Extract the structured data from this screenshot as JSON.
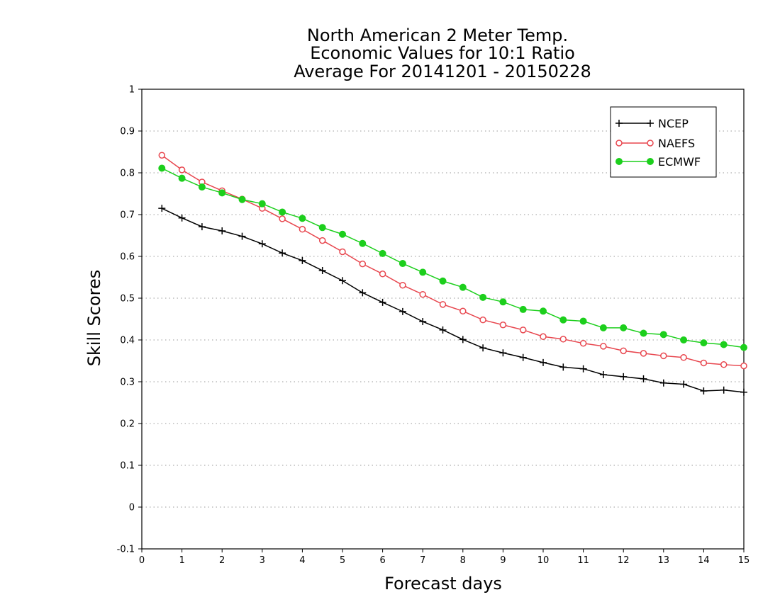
{
  "chart_data": {
    "type": "line",
    "title": [
      "North American 2 Meter Temp.",
      "Economic Values for 10:1 Ratio",
      "Average For 20141201 - 20150228"
    ],
    "xlabel": "Forecast days",
    "ylabel": "Skill Scores",
    "xlim": [
      0,
      15
    ],
    "ylim": [
      -0.1,
      1
    ],
    "xticks": [
      0,
      1,
      2,
      3,
      4,
      5,
      6,
      7,
      8,
      9,
      10,
      11,
      12,
      13,
      14,
      15
    ],
    "xtick_labels": [
      "0",
      "1",
      "2",
      "3",
      "4",
      "5",
      "6",
      "7",
      "8",
      "9",
      "10",
      "11",
      "12",
      "13",
      "14",
      "15"
    ],
    "yticks": [
      -0.1,
      0,
      0.1,
      0.2,
      0.3,
      0.4,
      0.5,
      0.6,
      0.7,
      0.8,
      0.9,
      1
    ],
    "ytick_labels": [
      "-0.1",
      "0",
      "0.1",
      "0.2",
      "0.3",
      "0.4",
      "0.5",
      "0.6",
      "0.7",
      "0.8",
      "0.9",
      "1"
    ],
    "grid": "horizontal dotted",
    "legend_position": "top-right",
    "x": [
      0.5,
      1,
      1.5,
      2,
      2.5,
      3,
      3.5,
      4,
      4.5,
      5,
      5.5,
      6,
      6.5,
      7,
      7.5,
      8,
      8.5,
      9,
      9.5,
      10,
      10.5,
      11,
      11.5,
      12,
      12.5,
      13,
      13.5,
      14,
      14.5,
      15
    ],
    "series": [
      {
        "name": "NCEP",
        "color": "#000000",
        "marker": "plus",
        "values": [
          0.715,
          0.692,
          0.671,
          0.661,
          0.648,
          0.63,
          0.608,
          0.59,
          0.566,
          0.542,
          0.513,
          0.49,
          0.468,
          0.444,
          0.424,
          0.401,
          0.381,
          0.369,
          0.358,
          0.346,
          0.335,
          0.331,
          0.317,
          0.312,
          0.307,
          0.297,
          0.294,
          0.278,
          0.28,
          0.275
        ]
      },
      {
        "name": "NAEFS",
        "color": "#e8474f",
        "marker": "open-circle",
        "values": [
          0.842,
          0.807,
          0.778,
          0.757,
          0.737,
          0.715,
          0.69,
          0.665,
          0.638,
          0.611,
          0.582,
          0.558,
          0.531,
          0.509,
          0.485,
          0.469,
          0.448,
          0.436,
          0.424,
          0.408,
          0.402,
          0.392,
          0.385,
          0.374,
          0.368,
          0.362,
          0.358,
          0.345,
          0.341,
          0.338
        ]
      },
      {
        "name": "ECMWF",
        "color": "#1ccf1c",
        "marker": "filled-circle",
        "values": [
          0.811,
          0.787,
          0.766,
          0.752,
          0.736,
          0.726,
          0.706,
          0.691,
          0.669,
          0.653,
          0.631,
          0.607,
          0.583,
          0.562,
          0.541,
          0.526,
          0.502,
          0.491,
          0.473,
          0.469,
          0.448,
          0.445,
          0.429,
          0.429,
          0.416,
          0.413,
          0.4,
          0.393,
          0.389,
          0.382
        ]
      }
    ]
  }
}
